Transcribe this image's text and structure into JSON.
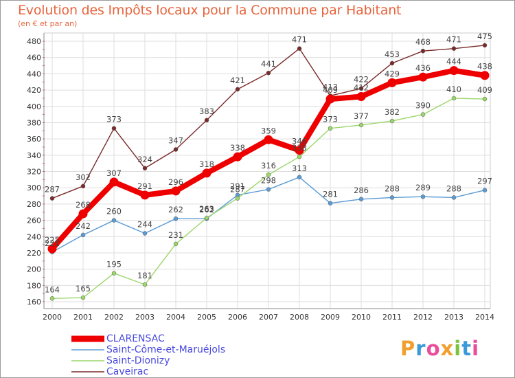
{
  "header": {
    "title": "Evolution des Impôts locaux pour la Commune par Habitant",
    "subtitle": "(en € et par an)"
  },
  "logo": {
    "letters": [
      "P",
      "r",
      "o",
      "x",
      "i",
      "t",
      "i"
    ],
    "colors": [
      "#f0a030",
      "#3a9ad8",
      "#e84e9a",
      "#f0a030",
      "#7cc440",
      "#3a9ad8",
      "#e84e9a"
    ]
  },
  "chart_data": {
    "type": "line",
    "title": "Evolution des Impôts locaux pour la Commune par Habitant",
    "subtitle": "(en € et par an)",
    "x": [
      "2000",
      "2001",
      "2002",
      "2003",
      "2004",
      "2005",
      "2006",
      "2007",
      "2008",
      "2009",
      "2010",
      "2011",
      "2012",
      "2013",
      "2014"
    ],
    "ylim": [
      160,
      480
    ],
    "yticks": [
      160,
      180,
      200,
      220,
      240,
      260,
      280,
      300,
      320,
      340,
      360,
      380,
      400,
      420,
      440,
      460,
      480
    ],
    "grid": true,
    "legend_position": "bottom-left",
    "series": [
      {
        "name": "Saint-Côme-et-Maruéjols",
        "color": "#5b9bd5",
        "values": [
          221,
          242,
          260,
          244,
          262,
          262,
          291,
          298,
          313,
          281,
          286,
          288,
          289,
          288,
          297
        ],
        "labels": [
          "221",
          "242",
          "260",
          "244",
          "262",
          "262",
          "291",
          "298",
          "313",
          "281",
          "286",
          "288",
          "289",
          "288",
          "297"
        ]
      },
      {
        "name": "Saint-Dionizy",
        "color": "#9bd66b",
        "values": [
          164,
          165,
          195,
          181,
          231,
          263,
          287,
          316,
          338,
          373,
          377,
          382,
          390,
          410,
          409
        ],
        "labels": [
          "164",
          "165",
          "195",
          "181",
          "231",
          "263",
          "287",
          "316",
          "338",
          "373",
          "377",
          "382",
          "390",
          "410",
          "409"
        ]
      },
      {
        "name": "Caveirac",
        "color": "#7a2a2a",
        "values": [
          287,
          302,
          373,
          324,
          347,
          383,
          421,
          441,
          471,
          413,
          422,
          453,
          468,
          471,
          475
        ],
        "labels": [
          "287",
          "302",
          "373",
          "324",
          "347",
          "383",
          "421",
          "441",
          "471",
          "413",
          "422",
          "453",
          "468",
          "471",
          "475"
        ]
      },
      {
        "name": "CLARENSAC",
        "color": "#ee0000",
        "values": [
          225,
          268,
          307,
          291,
          296,
          318,
          338,
          359,
          346,
          409,
          412,
          429,
          436,
          444,
          438
        ],
        "labels": [
          "225",
          "268",
          "307",
          "291",
          "296",
          "318",
          "338",
          "359",
          "346",
          "409",
          "412",
          "429",
          "436",
          "444",
          "438"
        ]
      }
    ],
    "legend": [
      "CLARENSAC",
      "Saint-Côme-et-Maruéjols",
      "Saint-Dionizy",
      "Caveirac"
    ]
  }
}
